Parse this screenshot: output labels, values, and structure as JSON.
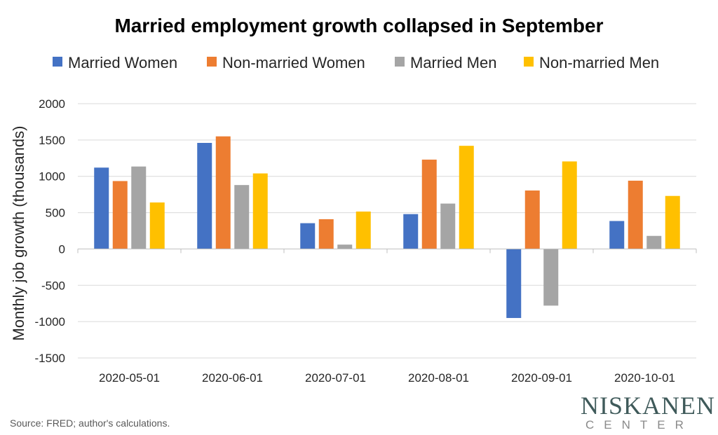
{
  "chart_data": {
    "type": "bar",
    "title": "Married employment growth collapsed in September",
    "xlabel": "",
    "ylabel": "Monthly job growth (thousands)",
    "categories": [
      "2020-05-01",
      "2020-06-01",
      "2020-07-01",
      "2020-08-01",
      "2020-09-01",
      "2020-10-01"
    ],
    "ylim": [
      -1500,
      2000
    ],
    "yticks": [
      2000,
      1500,
      1000,
      500,
      0,
      -500,
      -1000,
      -1500
    ],
    "grid": true,
    "legend_position": "top",
    "series": [
      {
        "name": "Married Women",
        "color": "#4472C4",
        "values": [
          1120,
          1460,
          355,
          480,
          -950,
          385
        ]
      },
      {
        "name": "Non-married Women",
        "color": "#ED7D31",
        "values": [
          935,
          1550,
          410,
          1230,
          805,
          940
        ]
      },
      {
        "name": "Married Men",
        "color": "#A5A5A5",
        "values": [
          1135,
          880,
          60,
          625,
          -780,
          180
        ]
      },
      {
        "name": "Non-married Men",
        "color": "#FFC000",
        "values": [
          640,
          1040,
          515,
          1420,
          1205,
          730
        ]
      }
    ]
  },
  "footer": {
    "source": "Source: FRED; author's calculations."
  },
  "logo": {
    "main": "NISKANEN",
    "sub": "CENTER"
  }
}
